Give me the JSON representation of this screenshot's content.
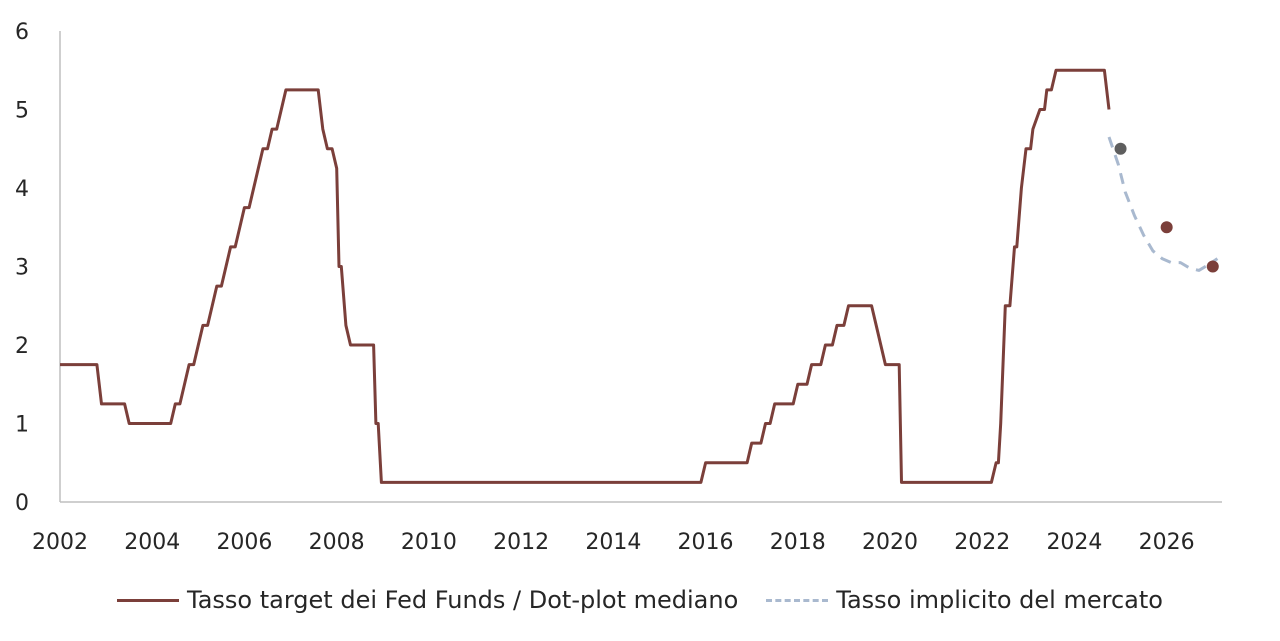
{
  "chart_data": {
    "type": "line",
    "title": "",
    "xlabel": "",
    "ylabel": "",
    "xlim": [
      2002,
      2027.2
    ],
    "ylim": [
      0,
      6
    ],
    "x_ticks": [
      "2002",
      "2004",
      "2006",
      "2008",
      "2010",
      "2012",
      "2014",
      "2016",
      "2018",
      "2020",
      "2022",
      "2024",
      "2026"
    ],
    "y_ticks": [
      "0",
      "1",
      "2",
      "3",
      "4",
      "5",
      "6"
    ],
    "grid": false,
    "legend": "bottom",
    "series": [
      {
        "name": "Tasso target dei Fed Funds / Dot-plot mediano",
        "style": "solid",
        "color": "#7B3F3A",
        "points": [
          [
            2002.0,
            1.75
          ],
          [
            2002.8,
            1.75
          ],
          [
            2002.9,
            1.25
          ],
          [
            2003.4,
            1.25
          ],
          [
            2003.5,
            1.0
          ],
          [
            2004.4,
            1.0
          ],
          [
            2004.5,
            1.25
          ],
          [
            2004.6,
            1.25
          ],
          [
            2004.7,
            1.5
          ],
          [
            2004.8,
            1.75
          ],
          [
            2004.9,
            1.75
          ],
          [
            2005.0,
            2.0
          ],
          [
            2005.1,
            2.25
          ],
          [
            2005.2,
            2.25
          ],
          [
            2005.3,
            2.5
          ],
          [
            2005.4,
            2.75
          ],
          [
            2005.5,
            2.75
          ],
          [
            2005.6,
            3.0
          ],
          [
            2005.7,
            3.25
          ],
          [
            2005.8,
            3.25
          ],
          [
            2005.9,
            3.5
          ],
          [
            2006.0,
            3.75
          ],
          [
            2006.1,
            3.75
          ],
          [
            2006.2,
            4.0
          ],
          [
            2006.3,
            4.25
          ],
          [
            2006.4,
            4.5
          ],
          [
            2006.5,
            4.5
          ],
          [
            2006.6,
            4.75
          ],
          [
            2006.7,
            4.75
          ],
          [
            2006.8,
            5.0
          ],
          [
            2006.9,
            5.25
          ],
          [
            2007.6,
            5.25
          ],
          [
            2007.7,
            4.75
          ],
          [
            2007.8,
            4.5
          ],
          [
            2007.9,
            4.5
          ],
          [
            2008.0,
            4.25
          ],
          [
            2008.05,
            3.0
          ],
          [
            2008.1,
            3.0
          ],
          [
            2008.2,
            2.25
          ],
          [
            2008.3,
            2.0
          ],
          [
            2008.8,
            2.0
          ],
          [
            2008.85,
            1.0
          ],
          [
            2008.9,
            1.0
          ],
          [
            2008.97,
            0.25
          ],
          [
            2015.9,
            0.25
          ],
          [
            2016.0,
            0.5
          ],
          [
            2016.9,
            0.5
          ],
          [
            2017.0,
            0.75
          ],
          [
            2017.2,
            0.75
          ],
          [
            2017.3,
            1.0
          ],
          [
            2017.4,
            1.0
          ],
          [
            2017.5,
            1.25
          ],
          [
            2017.9,
            1.25
          ],
          [
            2018.0,
            1.5
          ],
          [
            2018.2,
            1.5
          ],
          [
            2018.3,
            1.75
          ],
          [
            2018.5,
            1.75
          ],
          [
            2018.6,
            2.0
          ],
          [
            2018.75,
            2.0
          ],
          [
            2018.85,
            2.25
          ],
          [
            2019.0,
            2.25
          ],
          [
            2019.1,
            2.5
          ],
          [
            2019.6,
            2.5
          ],
          [
            2019.7,
            2.25
          ],
          [
            2019.8,
            2.0
          ],
          [
            2019.9,
            1.75
          ],
          [
            2020.2,
            1.75
          ],
          [
            2020.25,
            0.25
          ],
          [
            2022.2,
            0.25
          ],
          [
            2022.3,
            0.5
          ],
          [
            2022.35,
            0.5
          ],
          [
            2022.4,
            1.0
          ],
          [
            2022.5,
            2.5
          ],
          [
            2022.6,
            2.5
          ],
          [
            2022.7,
            3.25
          ],
          [
            2022.75,
            3.25
          ],
          [
            2022.85,
            4.0
          ],
          [
            2022.95,
            4.5
          ],
          [
            2023.05,
            4.5
          ],
          [
            2023.1,
            4.75
          ],
          [
            2023.25,
            5.0
          ],
          [
            2023.35,
            5.0
          ],
          [
            2023.4,
            5.25
          ],
          [
            2023.5,
            5.25
          ],
          [
            2023.6,
            5.5
          ],
          [
            2024.65,
            5.5
          ],
          [
            2024.75,
            5.0
          ]
        ]
      },
      {
        "name": "Tasso implicito del mercato",
        "style": "dashed",
        "color": "#A9B9CF",
        "points": [
          [
            2024.75,
            4.65
          ],
          [
            2024.95,
            4.3
          ],
          [
            2025.1,
            3.95
          ],
          [
            2025.3,
            3.65
          ],
          [
            2025.5,
            3.4
          ],
          [
            2025.7,
            3.2
          ],
          [
            2025.9,
            3.1
          ],
          [
            2026.1,
            3.05
          ],
          [
            2026.3,
            3.05
          ],
          [
            2026.5,
            2.98
          ],
          [
            2026.7,
            2.95
          ],
          [
            2026.9,
            3.02
          ],
          [
            2027.1,
            3.1
          ]
        ]
      }
    ],
    "dots": [
      {
        "x": 2025.0,
        "y": 4.5,
        "color": "#5E5E5E"
      },
      {
        "x": 2026.0,
        "y": 3.5,
        "color": "#7B3F3A"
      },
      {
        "x": 2027.0,
        "y": 3.0,
        "color": "#7B3F3A"
      }
    ]
  }
}
